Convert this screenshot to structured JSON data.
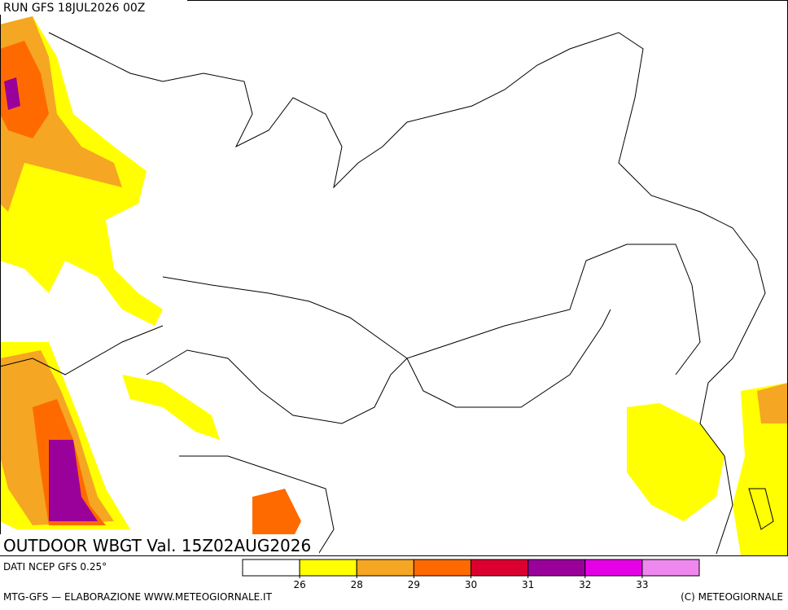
{
  "header": {
    "run": "RUN GFS 18JUL2026 00Z"
  },
  "map": {
    "title": "OUTDOOR WBGT Val. 15Z02AUG2026"
  },
  "footer": {
    "source": "DATI NCEP GFS 0.25°",
    "credit": "MTG-GFS — ELABORAZIONE WWW.METEOGIORNALE.IT",
    "copyright": "(C) METEOGIORNALE"
  },
  "legend": {
    "colors": [
      "#ffffff",
      "#ffff00",
      "#f5a623",
      "#ff6a00",
      "#dc0030",
      "#9a009a",
      "#e600e6",
      "#ee88ee"
    ],
    "ticks": [
      26,
      28,
      29,
      30,
      31,
      32,
      33
    ]
  }
}
